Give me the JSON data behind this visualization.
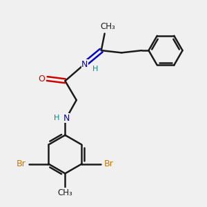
{
  "bg_color": "#f0f0f0",
  "bond_color": "#1a1a1a",
  "bond_width": 1.8,
  "N_color": "#0000cc",
  "O_color": "#cc0000",
  "Br_color": "#cc7700",
  "NH_color": "#008888",
  "figsize": [
    3.0,
    3.0
  ],
  "dpi": 100,
  "xlim": [
    -2.5,
    6.5
  ],
  "ylim": [
    -4.5,
    4.0
  ]
}
